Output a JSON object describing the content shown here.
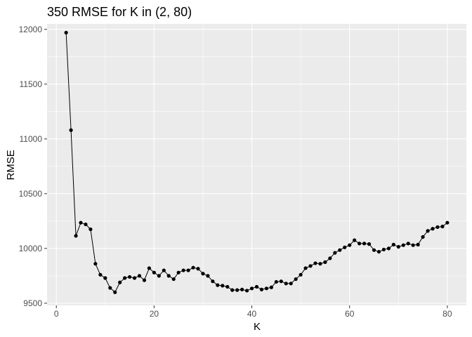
{
  "chart_data": {
    "type": "line",
    "title": "350 RMSE for K in (2, 80)",
    "xlabel": "K",
    "ylabel": "RMSE",
    "xlim": [
      -1.9,
      83.9
    ],
    "ylim": [
      9480,
      12050
    ],
    "xticks": [
      0,
      20,
      40,
      60,
      80
    ],
    "yticks": [
      9500,
      10000,
      10500,
      11000,
      11500,
      12000
    ],
    "xtick_labels": [
      "0",
      "20",
      "40",
      "60",
      "80"
    ],
    "ytick_labels": [
      "9500",
      "10000",
      "10500",
      "11000",
      "11500",
      "12000"
    ],
    "grid": true,
    "series": [
      {
        "x": [
          2,
          3,
          4,
          5,
          6,
          7,
          8,
          9,
          10,
          11,
          12,
          13,
          14,
          15,
          16,
          17,
          18,
          19,
          20,
          21,
          22,
          23,
          24,
          25,
          26,
          27,
          28,
          29,
          30,
          31,
          32,
          33,
          34,
          35,
          36,
          37,
          38,
          39,
          40,
          41,
          42,
          43,
          44,
          45,
          46,
          47,
          48,
          49,
          50,
          51,
          52,
          53,
          54,
          55,
          56,
          57,
          58,
          59,
          60,
          61,
          62,
          63,
          64,
          65,
          66,
          67,
          68,
          69,
          70,
          71,
          72,
          73,
          74,
          75,
          76,
          77,
          78,
          79,
          80
        ],
        "y": [
          11970,
          11080,
          10115,
          10235,
          10220,
          10175,
          9860,
          9760,
          9730,
          9640,
          9600,
          9690,
          9730,
          9740,
          9730,
          9750,
          9710,
          9820,
          9780,
          9750,
          9800,
          9750,
          9720,
          9780,
          9800,
          9800,
          9825,
          9815,
          9770,
          9750,
          9700,
          9665,
          9660,
          9650,
          9620,
          9620,
          9625,
          9615,
          9635,
          9650,
          9625,
          9635,
          9645,
          9695,
          9700,
          9680,
          9680,
          9720,
          9760,
          9820,
          9840,
          9865,
          9860,
          9875,
          9910,
          9960,
          9985,
          10010,
          10030,
          10075,
          10045,
          10045,
          10040,
          9985,
          9970,
          9990,
          10000,
          10035,
          10015,
          10030,
          10045,
          10030,
          10035,
          10105,
          10160,
          10180,
          10195,
          10200,
          10235
        ]
      }
    ]
  }
}
